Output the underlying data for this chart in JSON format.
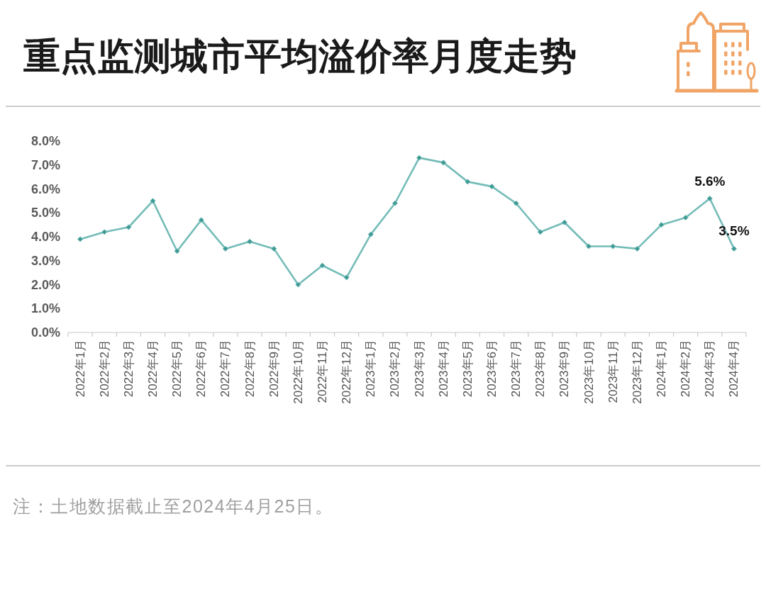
{
  "chart_data": {
    "type": "line",
    "title": "重点监测城市平均溢价率月度走势",
    "categories": [
      "2022年1月",
      "2022年2月",
      "2022年3月",
      "2022年4月",
      "2022年5月",
      "2022年6月",
      "2022年7月",
      "2022年8月",
      "2022年9月",
      "2022年10月",
      "2022年11月",
      "2022年12月",
      "2023年1月",
      "2023年2月",
      "2023年3月",
      "2023年4月",
      "2023年5月",
      "2023年6月",
      "2023年7月",
      "2023年8月",
      "2023年9月",
      "2023年10月",
      "2023年11月",
      "2023年12月",
      "2024年1月",
      "2024年2月",
      "2024年3月",
      "2024年4月"
    ],
    "series": [
      {
        "color": "#74bcb8",
        "values": [
          3.9,
          4.2,
          4.4,
          5.5,
          3.4,
          4.7,
          3.5,
          3.8,
          3.5,
          2.0,
          2.8,
          2.3,
          4.1,
          5.4,
          7.3,
          7.1,
          6.3,
          6.1,
          5.4,
          4.2,
          4.6,
          3.6,
          3.6,
          3.5,
          4.5,
          4.8,
          5.6,
          3.5
        ],
        "value_labels": [
          null,
          null,
          null,
          null,
          null,
          null,
          null,
          null,
          null,
          null,
          null,
          null,
          null,
          null,
          null,
          null,
          null,
          null,
          null,
          null,
          null,
          null,
          null,
          null,
          null,
          null,
          "5.6%",
          "3.5%"
        ]
      }
    ],
    "ylim": [
      0,
      8
    ],
    "yticks": [
      {
        "value": 0,
        "label": "0.0%"
      },
      {
        "value": 1,
        "label": "1.0%"
      },
      {
        "value": 2,
        "label": "2.0%"
      },
      {
        "value": 3,
        "label": "3.0%"
      },
      {
        "value": 4,
        "label": "4.0%"
      },
      {
        "value": 5,
        "label": "5.0%"
      },
      {
        "value": 6,
        "label": "6.0%"
      },
      {
        "value": 7,
        "label": "7.0%"
      },
      {
        "value": 8,
        "label": "8.0%"
      }
    ],
    "marker": "diamond",
    "line_style": "solid",
    "annotations": [
      "注：土地数据截止至2024年4月25日。"
    ]
  }
}
